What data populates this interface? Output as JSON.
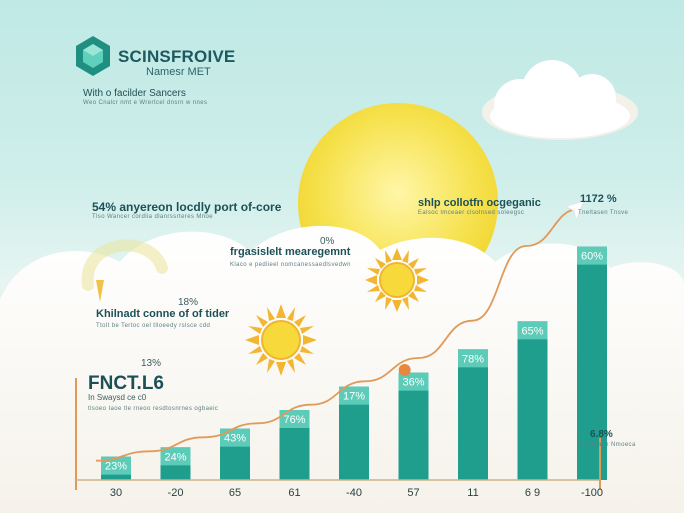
{
  "brand": {
    "name": "SCINSFROIVE",
    "subtitle": "Namesr MET",
    "tagline": "With o facilder Sancers",
    "tagline_sub": "Weo Cnalcr nmt e Wrertcel dnsrn w nnes",
    "logo_icon": "hexagon-cube-icon",
    "accent_color": "#1f9e8e"
  },
  "callouts": {
    "c1": {
      "title": "54% anyereon locdly port of-core",
      "sub": "Tlso Wancer cordlia dlanrssrteres Mnoe"
    },
    "c2": {
      "pct": "0%",
      "title": "frgasislelt mearegemnt",
      "sub": "Klaco e pedlieel nomcanessaedlsvedwn"
    },
    "c3": {
      "title": "shlp collotfn ocgeganic",
      "sub": "Ealsoc lmceaer clsolnsed soleegsc"
    },
    "c4": {
      "pct": "1172 %",
      "sub": "Tneltasen Tnsve"
    },
    "c5": {
      "pct": "18%",
      "title": "Khilnadt conne of of tider",
      "sub": "Ttolt be Tertoc oel tlloeedy rslsce cdd"
    },
    "c6": {
      "pct": "13%",
      "title": "FNCT.L6",
      "sub1": "In Swaysd ce c0",
      "sub2": "tlsoeo Iaoe tle rneoo resdtosnrnes ogbaeic"
    },
    "c7": {
      "pct": "6.8%",
      "sub": "Earaoacn Nmoeca"
    }
  },
  "chart_data": {
    "type": "bar",
    "title": "",
    "xlabel": "",
    "ylabel": "",
    "categories": [
      "30",
      "-20",
      "65",
      "61",
      "-40",
      "57",
      "11",
      "6 9",
      "-100"
    ],
    "series": [
      {
        "values": [
          5,
          7,
          11,
          15,
          20,
          23,
          28,
          34,
          50
        ]
      }
    ],
    "data_labels": [
      "23%",
      "24%",
      "43%",
      "76%",
      "17%",
      "36%",
      "78%",
      "65%",
      "60%"
    ],
    "trend_line": {
      "type": "line",
      "values": [
        2,
        4,
        7,
        10,
        14,
        19,
        24,
        32,
        48,
        56
      ]
    },
    "ylim": [
      0,
      60
    ],
    "grid": false,
    "legend": "none",
    "bar_color": "#1f9e8e",
    "bar_color_light": "#5ccbb8",
    "trend_color": "#e19a5a"
  },
  "decor": {
    "sun_icon": "sun-icon",
    "cloud_icon": "cloud-icon",
    "arrow_icon": "arrow-head-icon",
    "sun_color": "#f7e04a"
  }
}
